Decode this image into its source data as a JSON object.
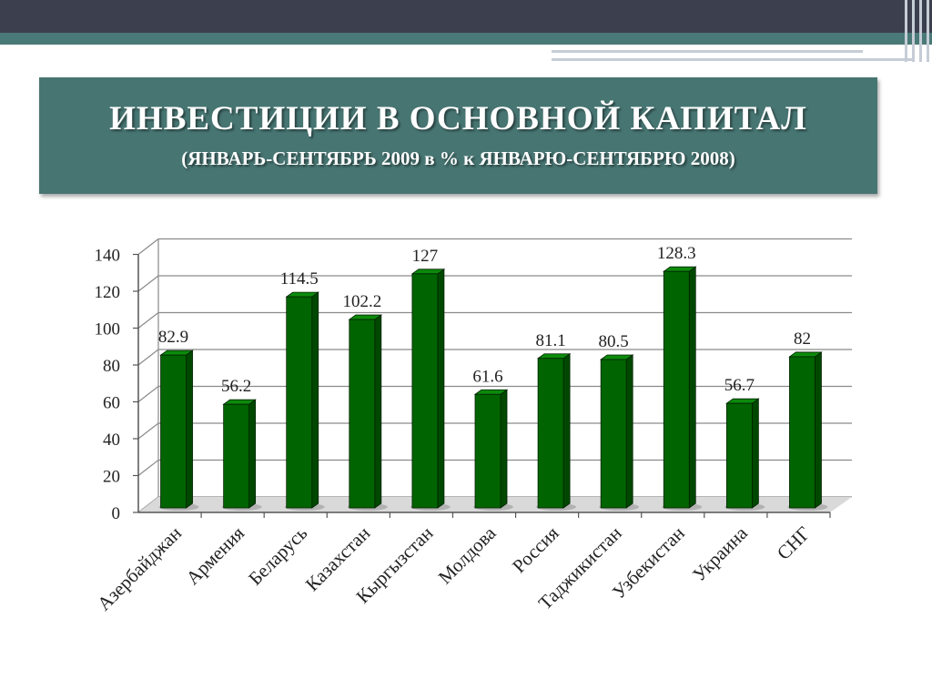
{
  "slide": {
    "title": "ИНВЕСТИЦИИ В ОСНОВНОЙ КАПИТАЛ",
    "subtitle": "(ЯНВАРЬ-СЕНТЯБРЬ 2009 в % к ЯНВАРЮ-СЕНТЯБРЮ 2008)",
    "colors": {
      "header_dark": "#3c3f4e",
      "header_teal": "#4a7a78",
      "title_box": "#477572",
      "bar_face": "#006400",
      "bar_side": "#004800",
      "bar_top": "#0c8a0c"
    }
  },
  "chart_data": {
    "type": "bar",
    "style": "3d-clustered-column",
    "categories": [
      "Азербайджан",
      "Армения",
      "Беларусь",
      "Казахстан",
      "Кыргызстан",
      "Молдова",
      "Россия",
      "Таджикистан",
      "Узбекистан",
      "Украина",
      "СНГ"
    ],
    "values": [
      82.9,
      56.2,
      114.5,
      102.2,
      127,
      61.6,
      81.1,
      80.5,
      128.3,
      56.7,
      82
    ],
    "value_labels": [
      "82.9",
      "56.2",
      "114.5",
      "102.2",
      "127",
      "61.6",
      "81.1",
      "80.5",
      "128.3",
      "56.7",
      "82"
    ],
    "ylim": [
      0,
      140
    ],
    "yticks": [
      "0",
      "20",
      "40",
      "60",
      "80",
      "100",
      "120",
      "140"
    ],
    "ytick_values": [
      0,
      20,
      40,
      60,
      80,
      100,
      120,
      140
    ],
    "grid": true,
    "legend": "none",
    "xlabel": "",
    "ylabel": ""
  }
}
